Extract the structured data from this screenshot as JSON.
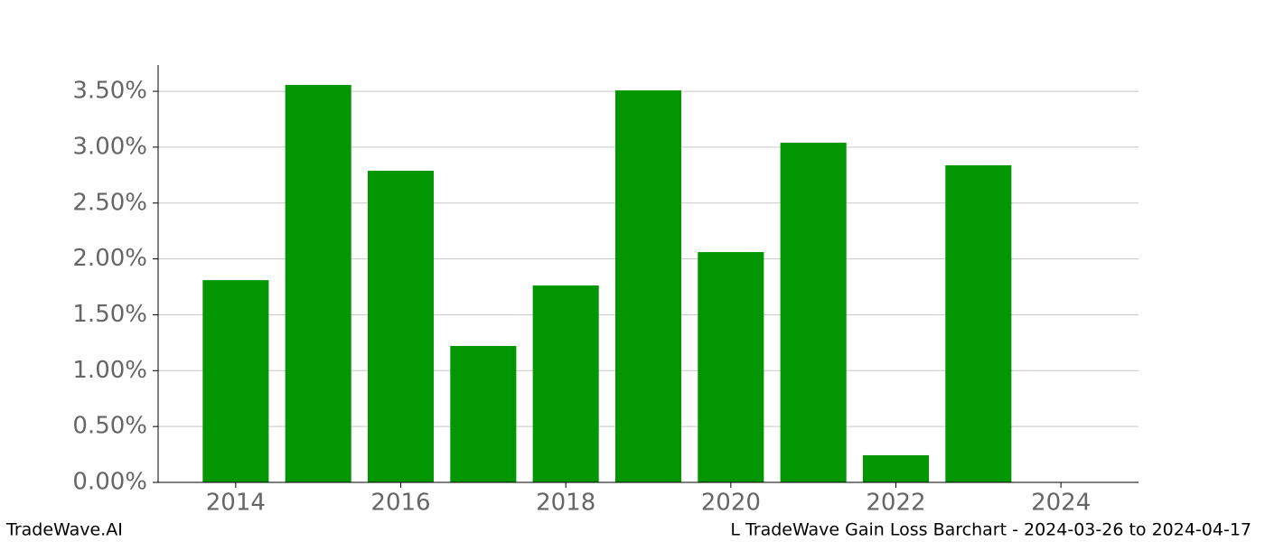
{
  "chart_data": {
    "type": "bar",
    "x": [
      2014,
      2015,
      2016,
      2017,
      2018,
      2019,
      2020,
      2021,
      2022,
      2023,
      2024
    ],
    "values": [
      1.81,
      3.557,
      2.789,
      1.221,
      1.762,
      3.508,
      2.061,
      3.04,
      0.243,
      2.838,
      0
    ],
    "color": "#039603",
    "xlim": [
      2013.06,
      2024.94
    ],
    "xticks": [
      2014,
      2016,
      2018,
      2020,
      2022,
      2024
    ],
    "ylim": [
      0,
      3.735
    ],
    "yticks": [
      {
        "value": 0,
        "label": "0.00%"
      },
      {
        "value": 0.5,
        "label": "0.50%"
      },
      {
        "value": 1,
        "label": "1.00%"
      },
      {
        "value": 1.5,
        "label": "1.50%"
      },
      {
        "value": 2,
        "label": "2.00%"
      },
      {
        "value": 2.5,
        "label": "2.50%"
      },
      {
        "value": 3,
        "label": "3.00%"
      },
      {
        "value": 3.5,
        "label": "3.50%"
      }
    ],
    "grid": true
  },
  "footer": {
    "left": "TradeWave.AI",
    "right": "L TradeWave Gain Loss Barchart - 2024-03-26 to 2024-04-17"
  }
}
